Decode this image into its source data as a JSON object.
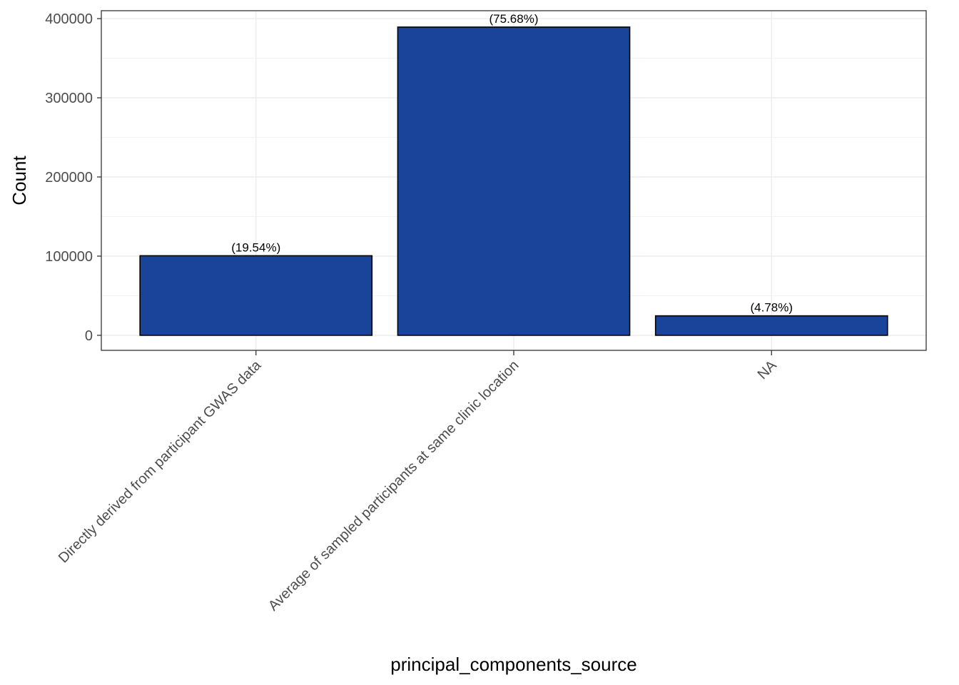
{
  "chart_data": {
    "type": "bar",
    "title": "",
    "xlabel": "principal_components_source",
    "ylabel": "Count",
    "categories": [
      "Directly derived from participant GWAS data",
      "Average of sampled participants at same clinic location",
      "NA"
    ],
    "values": [
      100500,
      389300,
      24600
    ],
    "data_labels": [
      "(19.54%)",
      "(75.68%)",
      "(4.78%)"
    ],
    "ylim": [
      -19000,
      410000
    ],
    "yticks": [
      0,
      100000,
      200000,
      300000,
      400000
    ],
    "ytick_labels": [
      "0",
      "100000",
      "200000",
      "300000",
      "400000"
    ],
    "grid": true,
    "legend": "none",
    "colors": {
      "bar_fill": "#19449a",
      "bar_stroke": "#000000",
      "grid_major": "#ebebeb",
      "grid_minor": "#f3f3f3",
      "panel_border": "#333333",
      "tick_text": "#4d4d4d"
    }
  }
}
